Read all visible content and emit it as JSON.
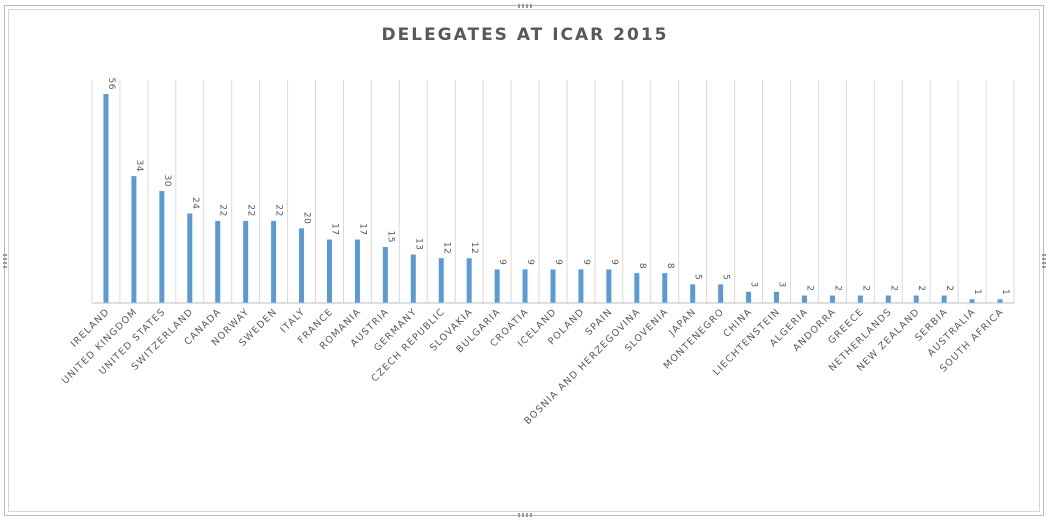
{
  "colors": {
    "bar": "#5b9bd5",
    "gridline": "#d9d9d9",
    "axis": "#bfbfbf",
    "text": "#595959"
  },
  "chart_data": {
    "type": "bar",
    "title": "DELEGATES AT ICAR 2015",
    "xlabel": "",
    "ylabel": "",
    "ylim": [
      0,
      56
    ],
    "grid": "vertical",
    "legend": "none",
    "categories": [
      "IRELAND",
      "UNITED KINGDOM",
      "UNITED STATES",
      "SWITZERLAND",
      "CANADA",
      "NORWAY",
      "SWEDEN",
      "ITALY",
      "FRANCE",
      "ROMANIA",
      "AUSTRIA",
      "GERMANY",
      "CZECH REPUBLIC",
      "SLOVAKIA",
      "BULGARIA",
      "CROATIA",
      "ICELAND",
      "POLAND",
      "SPAIN",
      "BOSNIA AND HERZEGOVINA",
      "SLOVENIA",
      "JAPAN",
      "MONTENEGRO",
      "CHINA",
      "LIECHTENSTEIN",
      "ALGERIA",
      "ANDORRA",
      "GREECE",
      "NETHERLANDS",
      "NEW ZEALAND",
      "SERBIA",
      "AUSTRALIA",
      "SOUTH AFRICA"
    ],
    "values": [
      56,
      34,
      30,
      24,
      22,
      22,
      22,
      20,
      17,
      17,
      15,
      13,
      12,
      12,
      9,
      9,
      9,
      9,
      9,
      8,
      8,
      5,
      5,
      3,
      3,
      2,
      2,
      2,
      2,
      2,
      2,
      1,
      1
    ]
  }
}
